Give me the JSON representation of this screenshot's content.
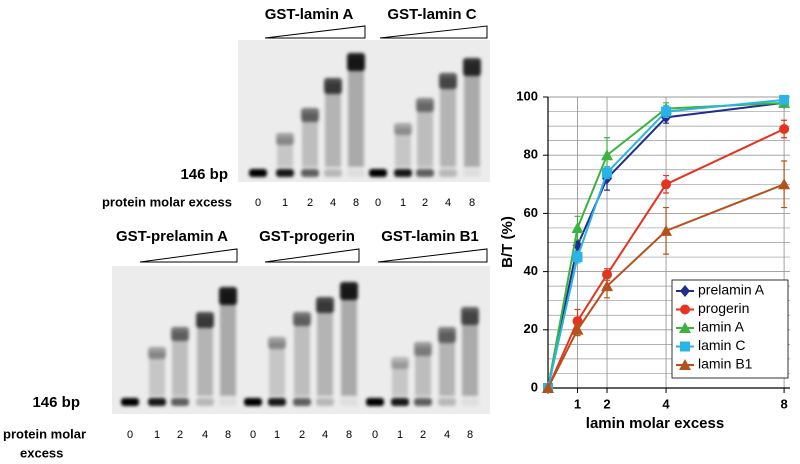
{
  "gels": {
    "top": {
      "titles": [
        "GST-lamin A",
        "GST-lamin C"
      ],
      "marker": "146 bp",
      "axis_label": "protein molar excess",
      "lanes": [
        [
          "0",
          "1",
          "2",
          "4",
          "8"
        ],
        [
          "0",
          "1",
          "2",
          "4",
          "8"
        ]
      ]
    },
    "bottom": {
      "titles": [
        "GST-prelamin A",
        "GST-progerin",
        "GST-lamin B1"
      ],
      "marker": "146 bp",
      "axis_label": [
        "protein molar",
        "excess"
      ],
      "lanes": [
        [
          "0",
          "1",
          "2",
          "4",
          "8"
        ],
        [
          "0",
          "1",
          "2",
          "4",
          "8"
        ],
        [
          "0",
          "1",
          "2",
          "4",
          "8"
        ]
      ]
    }
  },
  "chart_data": {
    "type": "line",
    "ylabel": "B/T (%)",
    "xlabel": "lamin molar excess",
    "x": [
      0,
      1,
      2,
      4,
      8
    ],
    "xlim": [
      0,
      8.2
    ],
    "xticks": [
      1,
      2,
      4,
      8
    ],
    "ylim": [
      0,
      100
    ],
    "yticks": [
      0,
      20,
      40,
      60,
      80,
      100
    ],
    "minor_yticks": [
      5,
      10,
      15,
      25,
      30,
      35,
      45,
      50,
      55,
      65,
      70,
      75,
      85,
      90,
      95
    ],
    "grid": true,
    "legend": "lower right",
    "series": [
      {
        "name": "prelamin A",
        "color": "#1f2d8c",
        "marker": "diamond",
        "values": [
          0,
          49,
          72,
          93,
          98
        ],
        "errors": [
          0,
          2,
          4,
          2,
          1
        ]
      },
      {
        "name": "progerin",
        "color": "#e5331f",
        "marker": "circle",
        "values": [
          0,
          23,
          39,
          70,
          89
        ],
        "errors": [
          0,
          4,
          2,
          3,
          3
        ]
      },
      {
        "name": "lamin A",
        "color": "#3db33d",
        "marker": "triangle",
        "values": [
          0,
          55,
          80,
          96,
          98
        ],
        "errors": [
          0,
          4,
          6,
          2,
          1
        ]
      },
      {
        "name": "lamin C",
        "color": "#29b3e6",
        "marker": "square",
        "values": [
          0,
          45,
          74,
          95,
          99
        ],
        "errors": [
          0,
          2,
          2,
          2,
          1
        ]
      },
      {
        "name": "lamin B1",
        "color": "#b4521d",
        "marker": "triangle",
        "values": [
          0,
          20,
          35,
          54,
          70
        ],
        "errors": [
          0,
          2,
          4,
          8,
          8
        ]
      }
    ]
  }
}
